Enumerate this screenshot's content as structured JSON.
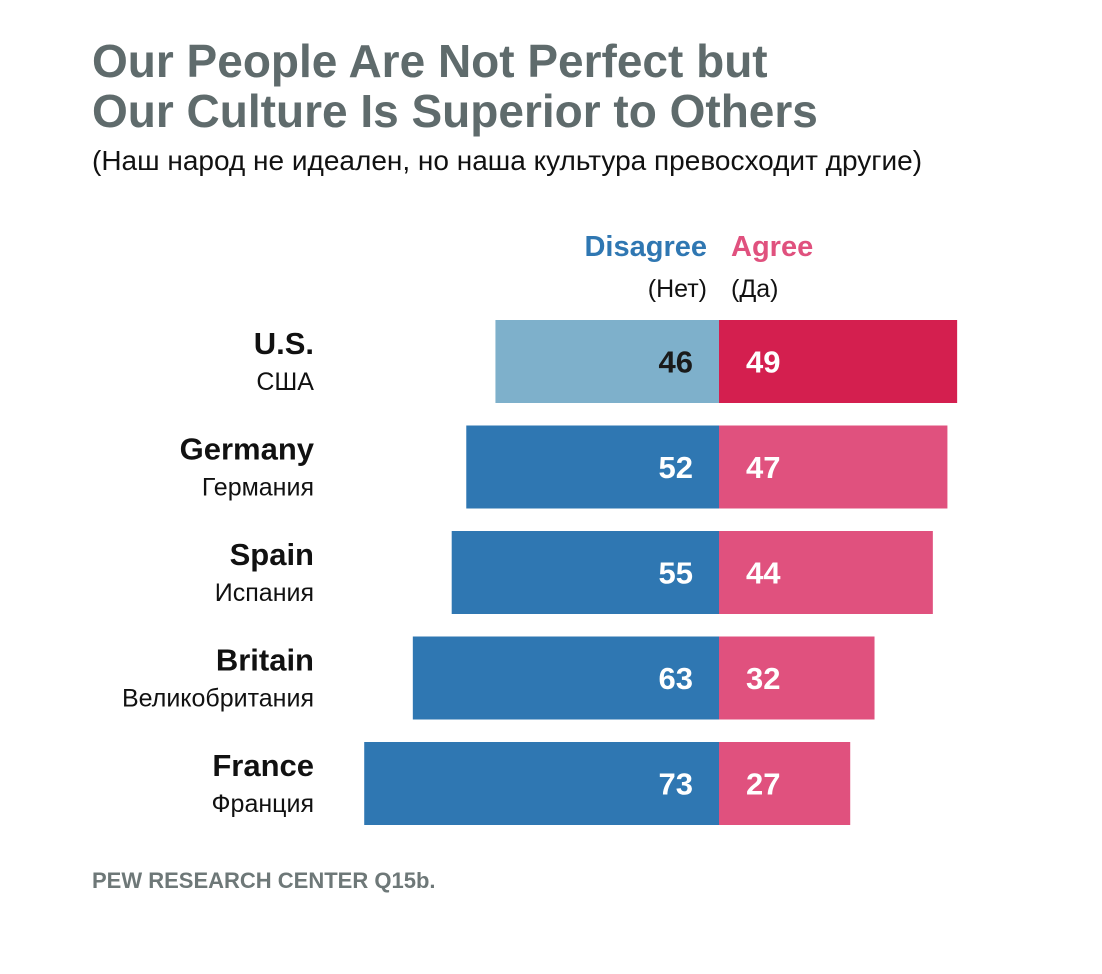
{
  "title_line1": "Our People Are Not Perfect but",
  "title_line2": "Our Culture Is Superior to Others",
  "subtitle": "(Наш народ не идеален, но наша культура превосходит другие)",
  "source": "PEW RESEARCH CENTER Q15b.",
  "colors": {
    "disagree": "#2f77b2",
    "disagree_highlight": "#7eb0cb",
    "agree": "#e0517e",
    "agree_highlight": "#d41f4f",
    "title": "#5f6b6c"
  },
  "chart_data": {
    "type": "bar",
    "orientation": "horizontal-diverging",
    "series": [
      {
        "name": "Disagree",
        "name_ru": "(Нет)",
        "values": [
          46,
          52,
          55,
          63,
          73
        ]
      },
      {
        "name": "Agree",
        "name_ru": "(Да)",
        "values": [
          49,
          47,
          44,
          32,
          27
        ]
      }
    ],
    "categories": [
      "U.S.",
      "Germany",
      "Spain",
      "Britain",
      "France"
    ],
    "categories_ru": [
      "США",
      "Германия",
      "Испания",
      "Великобритания",
      "Франция"
    ],
    "highlighted_category": "U.S.",
    "legend": "top-center"
  }
}
